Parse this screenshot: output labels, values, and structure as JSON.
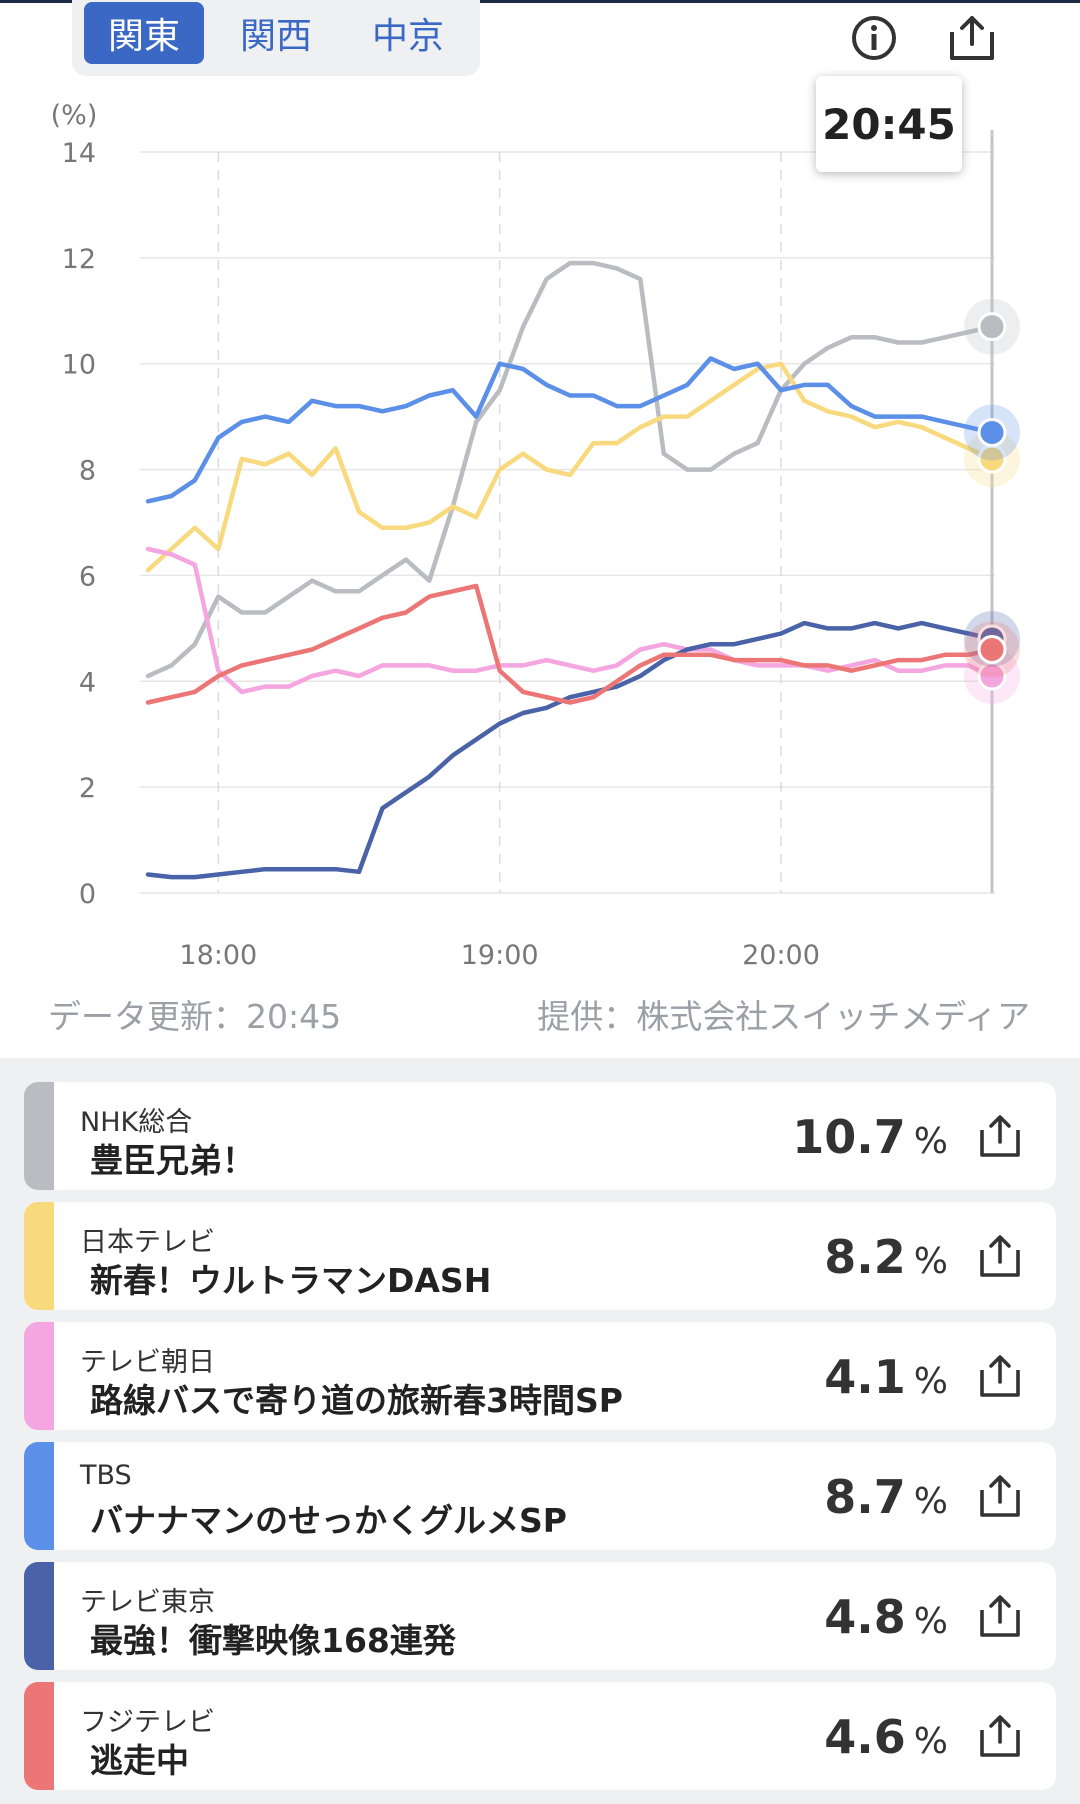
{
  "region_tabs": [
    {
      "label": "関東",
      "active": true
    },
    {
      "label": "関西",
      "active": false
    },
    {
      "label": "中京",
      "active": false
    }
  ],
  "icons": {
    "info": "info-icon",
    "share": "share-icon"
  },
  "tooltip_time": "20:45",
  "footer": {
    "updated": "データ更新：20:45",
    "provider": "提供：株式会社スイッチメディア"
  },
  "chart_data": {
    "type": "line",
    "ylabel": "(%)",
    "ylim": [
      0,
      14
    ],
    "yticks": [
      0,
      2,
      4,
      6,
      8,
      10,
      12,
      14
    ],
    "xlim": [
      "17:45",
      "20:45"
    ],
    "xticks": [
      "18:00",
      "19:00",
      "20:00"
    ],
    "grid": true,
    "cursor_time": "20:45",
    "series": [
      {
        "name": "NHK総合",
        "color": "#b9bcc1",
        "x": [
          "17:45",
          "17:50",
          "17:55",
          "18:00",
          "18:05",
          "18:10",
          "18:15",
          "18:20",
          "18:25",
          "18:30",
          "18:35",
          "18:40",
          "18:45",
          "18:50",
          "18:55",
          "19:00",
          "19:05",
          "19:10",
          "19:15",
          "19:20",
          "19:25",
          "19:30",
          "19:35",
          "19:40",
          "19:45",
          "19:50",
          "19:55",
          "20:00",
          "20:05",
          "20:10",
          "20:15",
          "20:20",
          "20:25",
          "20:30",
          "20:35",
          "20:40",
          "20:45"
        ],
        "values": [
          4.1,
          4.3,
          4.7,
          5.6,
          5.3,
          5.3,
          5.6,
          5.9,
          5.7,
          5.7,
          6.0,
          6.3,
          5.9,
          7.3,
          8.9,
          9.5,
          10.7,
          11.6,
          11.9,
          11.9,
          11.8,
          11.6,
          8.3,
          8.0,
          8.0,
          8.3,
          8.5,
          9.5,
          10.0,
          10.3,
          10.5,
          10.5,
          10.4,
          10.4,
          10.5,
          10.6,
          10.7
        ]
      },
      {
        "name": "日本テレビ",
        "color": "#f9d97d",
        "x": [
          "17:45",
          "17:50",
          "17:55",
          "18:00",
          "18:05",
          "18:10",
          "18:15",
          "18:20",
          "18:25",
          "18:30",
          "18:35",
          "18:40",
          "18:45",
          "18:50",
          "18:55",
          "19:00",
          "19:05",
          "19:10",
          "19:15",
          "19:20",
          "19:25",
          "19:30",
          "19:35",
          "19:40",
          "19:45",
          "19:50",
          "19:55",
          "20:00",
          "20:05",
          "20:10",
          "20:15",
          "20:20",
          "20:25",
          "20:30",
          "20:35",
          "20:40",
          "20:45"
        ],
        "values": [
          6.1,
          6.5,
          6.9,
          6.5,
          8.2,
          8.1,
          8.3,
          7.9,
          8.4,
          7.2,
          6.9,
          6.9,
          7.0,
          7.3,
          7.1,
          8.0,
          8.3,
          8.0,
          7.9,
          8.5,
          8.5,
          8.8,
          9.0,
          9.0,
          9.3,
          9.6,
          9.9,
          10.0,
          9.3,
          9.1,
          9.0,
          8.8,
          8.9,
          8.8,
          8.6,
          8.4,
          8.2
        ]
      },
      {
        "name": "テレビ朝日",
        "color": "#f5a5df",
        "x": [
          "17:45",
          "17:50",
          "17:55",
          "18:00",
          "18:05",
          "18:10",
          "18:15",
          "18:20",
          "18:25",
          "18:30",
          "18:35",
          "18:40",
          "18:45",
          "18:50",
          "18:55",
          "19:00",
          "19:05",
          "19:10",
          "19:15",
          "19:20",
          "19:25",
          "19:30",
          "19:35",
          "19:40",
          "19:45",
          "19:50",
          "19:55",
          "20:00",
          "20:05",
          "20:10",
          "20:15",
          "20:20",
          "20:25",
          "20:30",
          "20:35",
          "20:40",
          "20:45"
        ],
        "values": [
          6.5,
          6.4,
          6.2,
          4.2,
          3.8,
          3.9,
          3.9,
          4.1,
          4.2,
          4.1,
          4.3,
          4.3,
          4.3,
          4.2,
          4.2,
          4.3,
          4.3,
          4.4,
          4.3,
          4.2,
          4.3,
          4.6,
          4.7,
          4.6,
          4.6,
          4.4,
          4.3,
          4.3,
          4.3,
          4.2,
          4.3,
          4.4,
          4.2,
          4.2,
          4.3,
          4.3,
          4.1
        ]
      },
      {
        "name": "TBS",
        "color": "#5b8fe8",
        "x": [
          "17:45",
          "17:50",
          "17:55",
          "18:00",
          "18:05",
          "18:10",
          "18:15",
          "18:20",
          "18:25",
          "18:30",
          "18:35",
          "18:40",
          "18:45",
          "18:50",
          "18:55",
          "19:00",
          "19:05",
          "19:10",
          "19:15",
          "19:20",
          "19:25",
          "19:30",
          "19:35",
          "19:40",
          "19:45",
          "19:50",
          "19:55",
          "20:00",
          "20:05",
          "20:10",
          "20:15",
          "20:20",
          "20:25",
          "20:30",
          "20:35",
          "20:40",
          "20:45"
        ],
        "values": [
          7.4,
          7.5,
          7.8,
          8.6,
          8.9,
          9.0,
          8.9,
          9.3,
          9.2,
          9.2,
          9.1,
          9.2,
          9.4,
          9.5,
          9.0,
          10.0,
          9.9,
          9.6,
          9.4,
          9.4,
          9.2,
          9.2,
          9.4,
          9.6,
          10.1,
          9.9,
          10.0,
          9.5,
          9.6,
          9.6,
          9.2,
          9.0,
          9.0,
          9.0,
          8.9,
          8.8,
          8.7
        ]
      },
      {
        "name": "テレビ東京",
        "color": "#4a62a8",
        "x": [
          "17:45",
          "17:50",
          "17:55",
          "18:00",
          "18:05",
          "18:10",
          "18:15",
          "18:20",
          "18:25",
          "18:30",
          "18:35",
          "18:40",
          "18:45",
          "18:50",
          "18:55",
          "19:00",
          "19:05",
          "19:10",
          "19:15",
          "19:20",
          "19:25",
          "19:30",
          "19:35",
          "19:40",
          "19:45",
          "19:50",
          "19:55",
          "20:00",
          "20:05",
          "20:10",
          "20:15",
          "20:20",
          "20:25",
          "20:30",
          "20:35",
          "20:40",
          "20:45"
        ],
        "values": [
          0.35,
          0.3,
          0.3,
          0.35,
          0.4,
          0.45,
          0.45,
          0.45,
          0.45,
          0.4,
          1.6,
          1.9,
          2.2,
          2.6,
          2.9,
          3.2,
          3.4,
          3.5,
          3.7,
          3.8,
          3.9,
          4.1,
          4.4,
          4.6,
          4.7,
          4.7,
          4.8,
          4.9,
          5.1,
          5.0,
          5.0,
          5.1,
          5.0,
          5.1,
          5.0,
          4.9,
          4.8
        ]
      },
      {
        "name": "フジテレビ",
        "color": "#ec7676",
        "x": [
          "17:45",
          "17:50",
          "17:55",
          "18:00",
          "18:05",
          "18:10",
          "18:15",
          "18:20",
          "18:25",
          "18:30",
          "18:35",
          "18:40",
          "18:45",
          "18:50",
          "18:55",
          "19:00",
          "19:05",
          "19:10",
          "19:15",
          "19:20",
          "19:25",
          "19:30",
          "19:35",
          "19:40",
          "19:45",
          "19:50",
          "19:55",
          "20:00",
          "20:05",
          "20:10",
          "20:15",
          "20:20",
          "20:25",
          "20:30",
          "20:35",
          "20:40",
          "20:45"
        ],
        "values": [
          3.6,
          3.7,
          3.8,
          4.1,
          4.3,
          4.4,
          4.5,
          4.6,
          4.8,
          5.0,
          5.2,
          5.3,
          5.6,
          5.7,
          5.8,
          4.2,
          3.8,
          3.7,
          3.6,
          3.7,
          4.0,
          4.3,
          4.5,
          4.5,
          4.5,
          4.4,
          4.4,
          4.4,
          4.3,
          4.3,
          4.2,
          4.3,
          4.4,
          4.4,
          4.5,
          4.5,
          4.6
        ]
      }
    ]
  },
  "channels": [
    {
      "name": "NHK総合",
      "program": "豊臣兄弟！",
      "rating": "10.7",
      "unit": "%",
      "color": "#b9bcc1"
    },
    {
      "name": "日本テレビ",
      "program": "新春！ウルトラマンDASH",
      "rating": "8.2",
      "unit": "%",
      "color": "#f9d97d"
    },
    {
      "name": "テレビ朝日",
      "program": "路線バスで寄り道の旅新春3時間SP",
      "rating": "4.1",
      "unit": "%",
      "color": "#f5a5df"
    },
    {
      "name": "TBS",
      "program": "バナナマンのせっかくグルメSP",
      "rating": "8.7",
      "unit": "%",
      "color": "#5b8fe8"
    },
    {
      "name": "テレビ東京",
      "program": "最強！衝撃映像168連発",
      "rating": "4.8",
      "unit": "%",
      "color": "#4a62a8"
    },
    {
      "name": "フジテレビ",
      "program": "逃走中",
      "rating": "4.6",
      "unit": "%",
      "color": "#ec7676"
    }
  ]
}
